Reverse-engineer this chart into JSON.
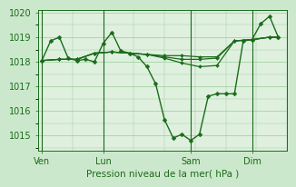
{
  "background_color": "#cce8cc",
  "plot_bg_color": "#dff0df",
  "grid_color": "#99cc99",
  "line_color": "#1a6b1a",
  "marker_color": "#1a6b1a",
  "xlabel": "Pression niveau de la mer( hPa )",
  "ylim": [
    1014.4,
    1020.1
  ],
  "yticks": [
    1015,
    1016,
    1017,
    1018,
    1019,
    1020
  ],
  "series1": {
    "x": [
      0,
      0.5,
      1.0,
      1.5,
      2.0,
      2.5,
      3.0,
      3.5,
      4.0,
      4.5,
      5.0,
      5.5,
      6.0,
      6.5,
      7.0,
      7.5,
      8.0,
      8.5,
      9.0,
      9.5,
      10.0,
      10.5,
      11.0,
      11.5,
      12.0,
      12.5,
      13.0,
      13.5
    ],
    "y": [
      1018.05,
      1018.85,
      1019.0,
      1018.15,
      1018.05,
      1018.1,
      1018.0,
      1018.75,
      1019.2,
      1018.45,
      1018.35,
      1018.2,
      1017.8,
      1017.1,
      1015.65,
      1014.9,
      1015.05,
      1014.8,
      1015.05,
      1016.6,
      1016.7,
      1016.7,
      1016.7,
      1018.85,
      1018.9,
      1019.55,
      1019.85,
      1019.0
    ]
  },
  "series2": {
    "x": [
      0,
      1.0,
      2.0,
      3.0,
      4.0,
      5.0,
      6.0,
      7.0,
      8.0,
      9.0,
      10.0,
      11.0,
      12.0,
      13.0,
      13.5
    ],
    "y": [
      1018.05,
      1018.1,
      1018.1,
      1018.35,
      1018.4,
      1018.35,
      1018.3,
      1018.25,
      1018.25,
      1018.2,
      1018.2,
      1018.85,
      1018.9,
      1019.0,
      1019.0
    ]
  },
  "series3": {
    "x": [
      0,
      1.0,
      2.0,
      3.0,
      4.0,
      5.0,
      6.0,
      7.0,
      8.0,
      9.0,
      10.0,
      11.0,
      12.0,
      13.0,
      13.5
    ],
    "y": [
      1018.05,
      1018.1,
      1018.1,
      1018.35,
      1018.4,
      1018.35,
      1018.3,
      1018.2,
      1018.1,
      1018.1,
      1018.15,
      1018.85,
      1018.9,
      1019.0,
      1019.0
    ]
  },
  "series4": {
    "x": [
      0,
      1.0,
      2.0,
      3.0,
      4.0,
      5.0,
      6.0,
      7.0,
      8.0,
      9.0,
      10.0,
      11.0,
      12.0,
      13.0,
      13.5
    ],
    "y": [
      1018.05,
      1018.1,
      1018.1,
      1018.35,
      1018.4,
      1018.35,
      1018.3,
      1018.15,
      1017.95,
      1017.8,
      1017.85,
      1018.85,
      1018.9,
      1019.0,
      1019.0
    ]
  },
  "vlines": [
    0,
    3.5,
    8.5,
    12.0
  ],
  "xtick_pos": [
    0,
    3.5,
    8.5,
    12.0
  ],
  "xtick_labels": [
    "Ven",
    "Lun",
    "Sam",
    "Dim"
  ],
  "xmin": -0.2,
  "xmax": 14.0
}
